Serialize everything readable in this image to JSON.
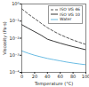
{
  "chart_data": {
    "type": "line",
    "x_label": "Temperature (°C)",
    "y_label": "Viscosity (Pa·s)",
    "x": [
      0,
      10,
      20,
      30,
      40,
      50,
      60,
      70,
      80,
      90,
      100
    ],
    "series": [
      {
        "name": "ISO VG 46",
        "color": "#444444",
        "line_style": "dashed",
        "values": [
          0.52,
          0.26,
          0.14,
          0.075,
          0.041,
          0.025,
          0.016,
          0.011,
          0.0078,
          0.0057,
          0.0043
        ]
      },
      {
        "name": "ISO VG 10",
        "color": "#222222",
        "line_style": "solid",
        "values": [
          0.062,
          0.038,
          0.024,
          0.015,
          0.0087,
          0.0066,
          0.0051,
          0.004,
          0.0032,
          0.0026,
          0.0021
        ]
      },
      {
        "name": "Water",
        "color": "#5ab4e0",
        "line_style": "solid",
        "values": [
          0.00179,
          0.00131,
          0.001,
          0.0008,
          0.00065,
          0.00055,
          0.00047,
          0.0004,
          0.00035,
          0.00031,
          0.00028
        ]
      }
    ],
    "xlim": [
      0,
      100
    ],
    "xticks": [
      0,
      20,
      40,
      60,
      80,
      100
    ],
    "ylim": [
      0.0001,
      1
    ],
    "yticks": [
      {
        "value": 0.0001,
        "label": "10⁻⁴"
      },
      {
        "value": 0.001,
        "label": "10⁻³"
      },
      {
        "value": 0.01,
        "label": "10⁻²"
      },
      {
        "value": 0.1,
        "label": "10⁻¹"
      },
      {
        "value": 1,
        "label": "10⁰"
      }
    ],
    "log": "y",
    "grid": false,
    "legend": "top-right"
  }
}
